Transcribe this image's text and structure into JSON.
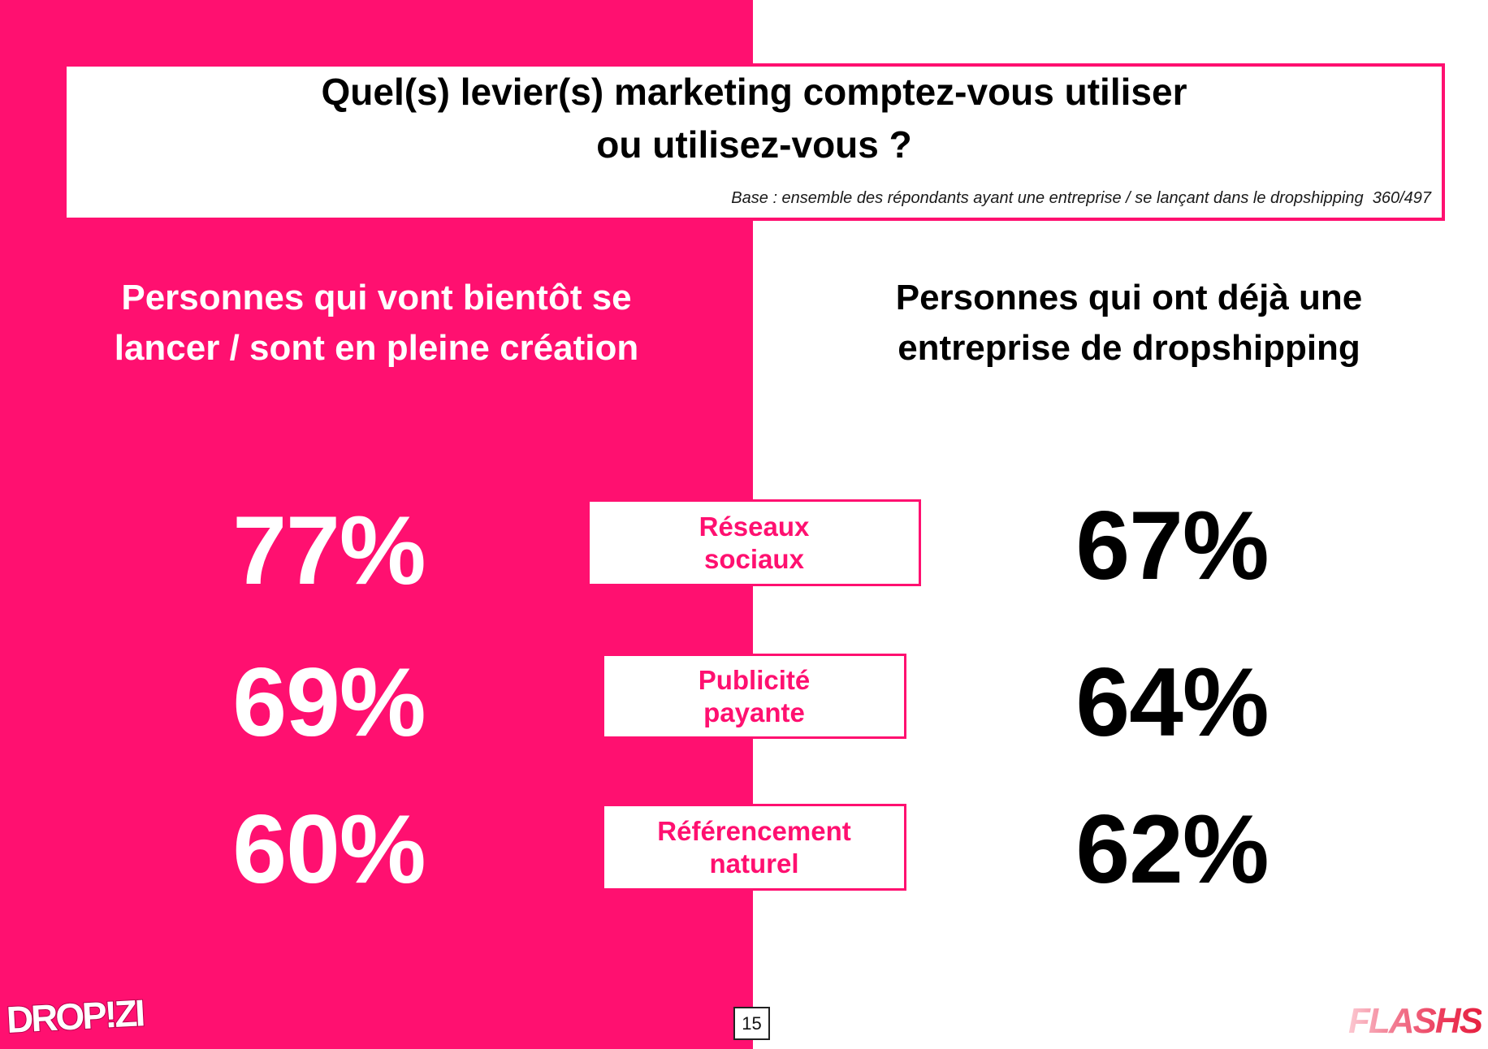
{
  "colors": {
    "accent": "#FF1070",
    "dark_text": "#000000"
  },
  "header": {
    "title": [
      "Quel(s) levier(s) marketing comptez-vous utiliser",
      "ou utilisez-vous ?"
    ],
    "base_note": "Base : ensemble des répondants ayant une entreprise / se lançant dans le dropshipping  360/497"
  },
  "groups": {
    "launching": [
      "Personnes qui vont bientôt se",
      "lancer / sont en pleine création"
    ],
    "existing": [
      "Personnes qui ont déjà une",
      "entreprise de dropshipping"
    ]
  },
  "rows": [
    {
      "label": [
        "Réseaux",
        "sociaux"
      ],
      "launching": "77%",
      "existing": "67%"
    },
    {
      "label": [
        "Publicité",
        "payante"
      ],
      "launching": "69%",
      "existing": "64%"
    },
    {
      "label": [
        "Référencement",
        "naturel"
      ],
      "launching": "60%",
      "existing": "62%"
    }
  ],
  "footer": {
    "page_number": "15",
    "logo_left": "DROP!ZI",
    "logo_right": "FLASHS"
  }
}
